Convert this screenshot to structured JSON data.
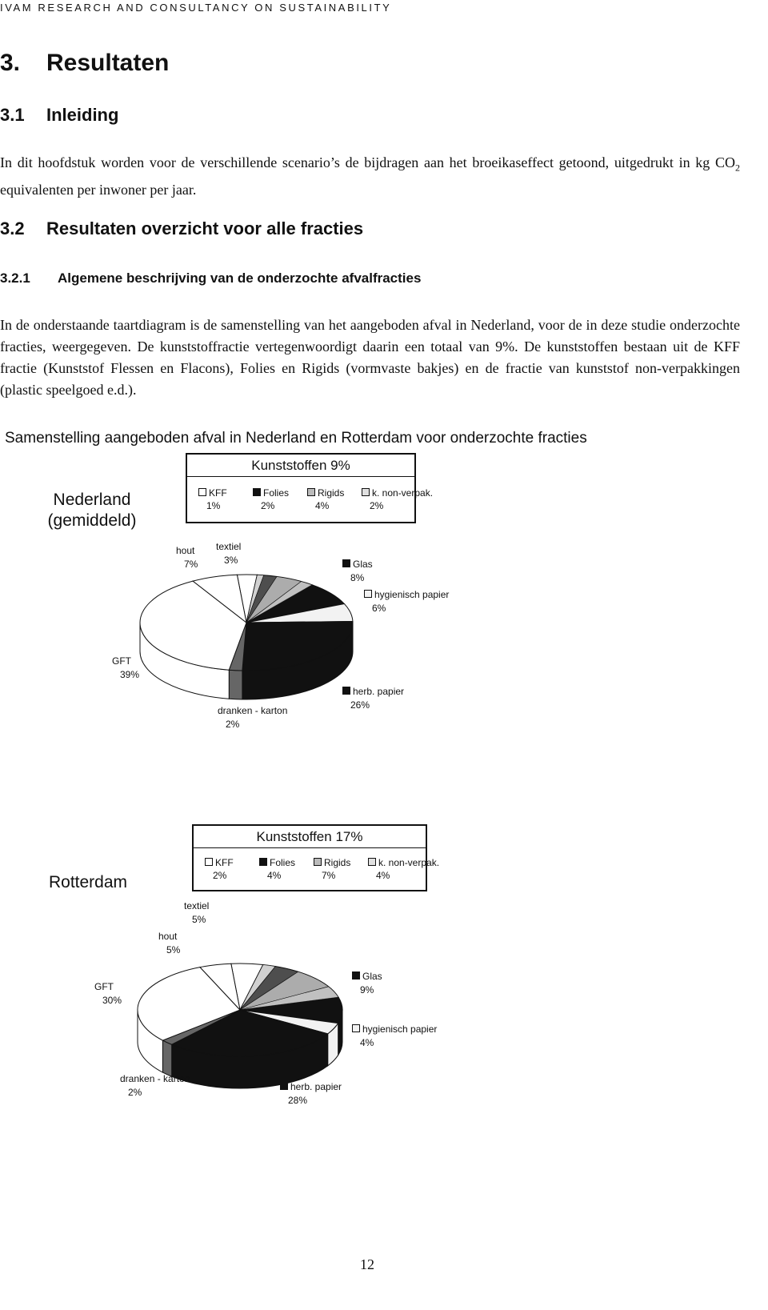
{
  "header": "IVAM RESEARCH AND CONSULTANCY ON SUSTAINABILITY",
  "heading": {
    "number": "3.",
    "title": "Resultaten"
  },
  "section_1": {
    "number": "3.1",
    "title": "Inleiding"
  },
  "intro_text": [
    "In dit hoofdstuk worden voor de verschillende scenario’s de bijdragen aan het broeikaseffect getoond, uitgedrukt in kg CO",
    "2",
    " equivalenten per inwoner per jaar."
  ],
  "section_2": {
    "number": "3.2",
    "title": "Resultaten overzicht voor alle fracties"
  },
  "subsection": {
    "number": "3.2.1",
    "title": "Algemene beschrijving van de onderzochte afvalfracties"
  },
  "body_text": "In de onderstaande taartdiagram is de samenstelling van het aangeboden afval in Nederland, voor de in deze studie onderzochte fracties, weergegeven. De kunststoffractie vertegenwoordigt daarin een totaal van 9%. De kunststoffen bestaan uit de KFF fractie (Kunststof Flessen en Flacons), Folies en Rigids (vormvaste bakjes) en de fractie van kunststof non-verpakkingen (plastic speelgoed e.d.).",
  "figure_title": "Samenstelling aangeboden afval in Nederland en Rotterdam voor onderzochte fracties",
  "chart_data": [
    {
      "type": "pie",
      "title": "Nederland (gemiddeld)",
      "categories": [
        "textiel",
        "Kunststoffen",
        "Glas",
        "hygienisch papier",
        "herb. papier",
        "dranken - karton",
        "GFT",
        "hout"
      ],
      "values": [
        3,
        9,
        8,
        6,
        26,
        2,
        39,
        7
      ],
      "value_labels": [
        "3%",
        "9%",
        "8%",
        "6%",
        "26%",
        "2%",
        "39%",
        "7%"
      ],
      "colors": [
        "#ffffff",
        "#9a9a9a",
        "#111111",
        "#f2f2f2",
        "#111111",
        "#666666",
        "#ffffff",
        "#ffffff"
      ],
      "breakdown": {
        "categories": [
          "KFF",
          "Folies",
          "Rigids",
          "k. non-verpak."
        ],
        "values": [
          1,
          2,
          4,
          2
        ],
        "value_labels": [
          "1%",
          "2%",
          "4%",
          "2%"
        ],
        "colors": [
          "#ffffff",
          "#111111",
          "#bbbbbb",
          "#e0e0e0"
        ]
      }
    },
    {
      "type": "pie",
      "title": "Rotterdam",
      "categories": [
        "textiel",
        "Kunststoffen",
        "Glas",
        "hygienisch papier",
        "herb. papier",
        "dranken - karton",
        "GFT",
        "hout"
      ],
      "values": [
        5,
        17,
        9,
        4,
        28,
        2,
        30,
        5
      ],
      "value_labels": [
        "5%",
        "17%",
        "9%",
        "4%",
        "28%",
        "2%",
        "30%",
        "5%"
      ],
      "colors": [
        "#ffffff",
        "#9a9a9a",
        "#111111",
        "#f2f2f2",
        "#111111",
        "#666666",
        "#ffffff",
        "#ffffff"
      ],
      "breakdown": {
        "categories": [
          "KFF",
          "Folies",
          "Rigids",
          "k. non-verpak."
        ],
        "values": [
          2,
          4,
          7,
          4
        ],
        "value_labels": [
          "2%",
          "4%",
          "7%",
          "4%"
        ],
        "colors": [
          "#ffffff",
          "#111111",
          "#bbbbbb",
          "#e0e0e0"
        ]
      }
    }
  ],
  "page_number": "12"
}
